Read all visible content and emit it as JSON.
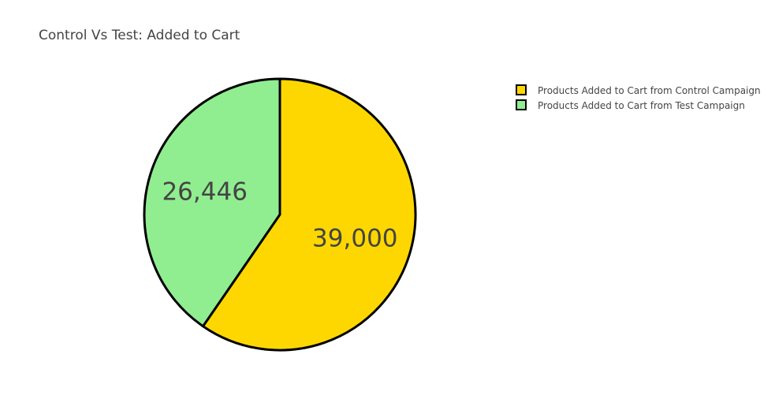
{
  "chart_data": {
    "type": "pie",
    "title": "Control Vs Test: Added to Cart",
    "labels": [
      "Products Added to Cart from Control Campaign",
      "Products Added to Cart from Test Campaign"
    ],
    "values": [
      39000,
      26446
    ],
    "value_labels": [
      "39,000",
      "26,446"
    ],
    "colors": [
      "#FFD700",
      "#90EE90"
    ],
    "outline_color": "#000000",
    "legend_position": "top-right",
    "direction": "clockwise",
    "start": "top"
  }
}
